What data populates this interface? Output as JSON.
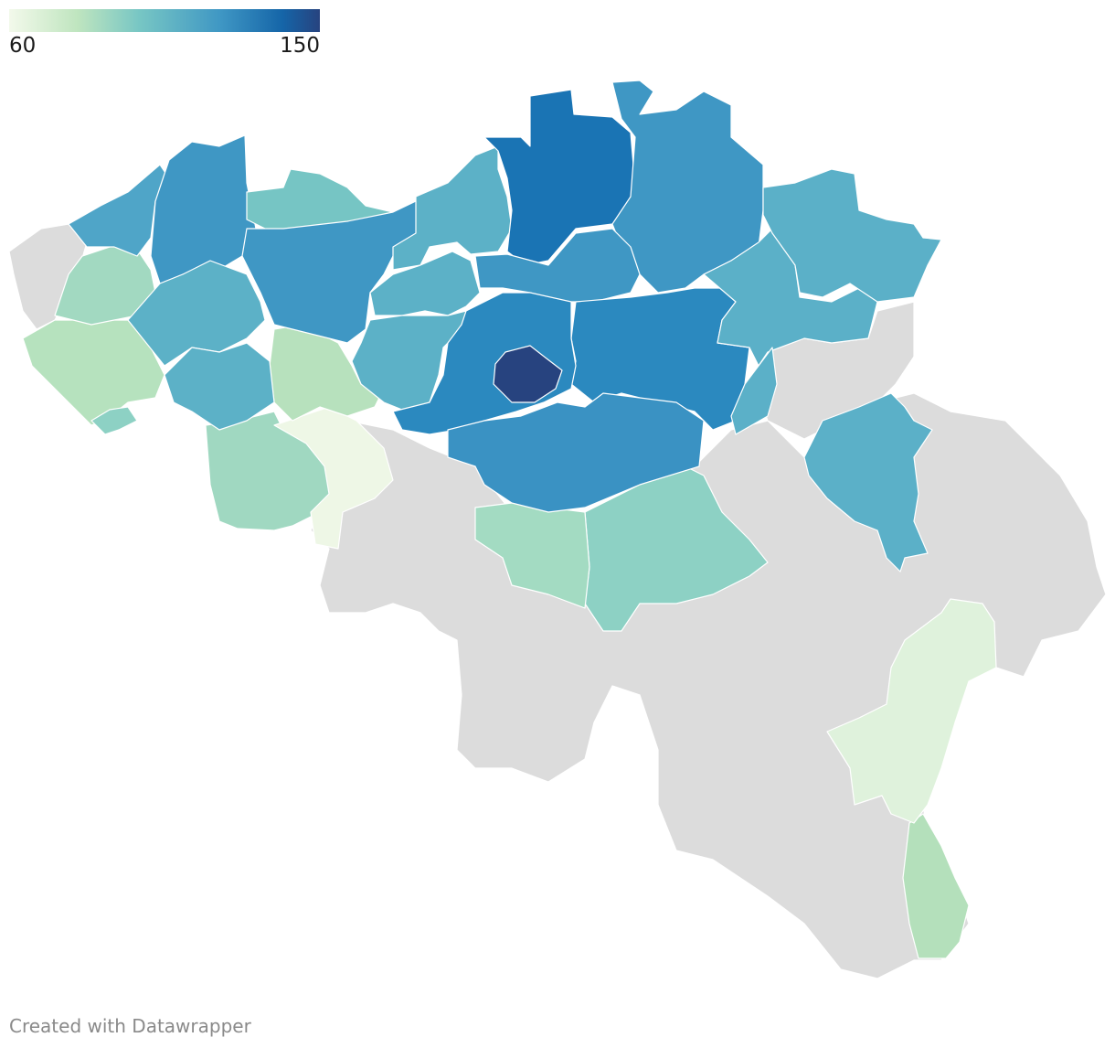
{
  "legend": {
    "min": "60",
    "max": "150",
    "low_color": "#f3f9eb",
    "high_color": "#27437f"
  },
  "credit": "Created with Datawrapper",
  "colors": {
    "no_data": "#dcdcdc",
    "border": "#ffffff"
  }
}
